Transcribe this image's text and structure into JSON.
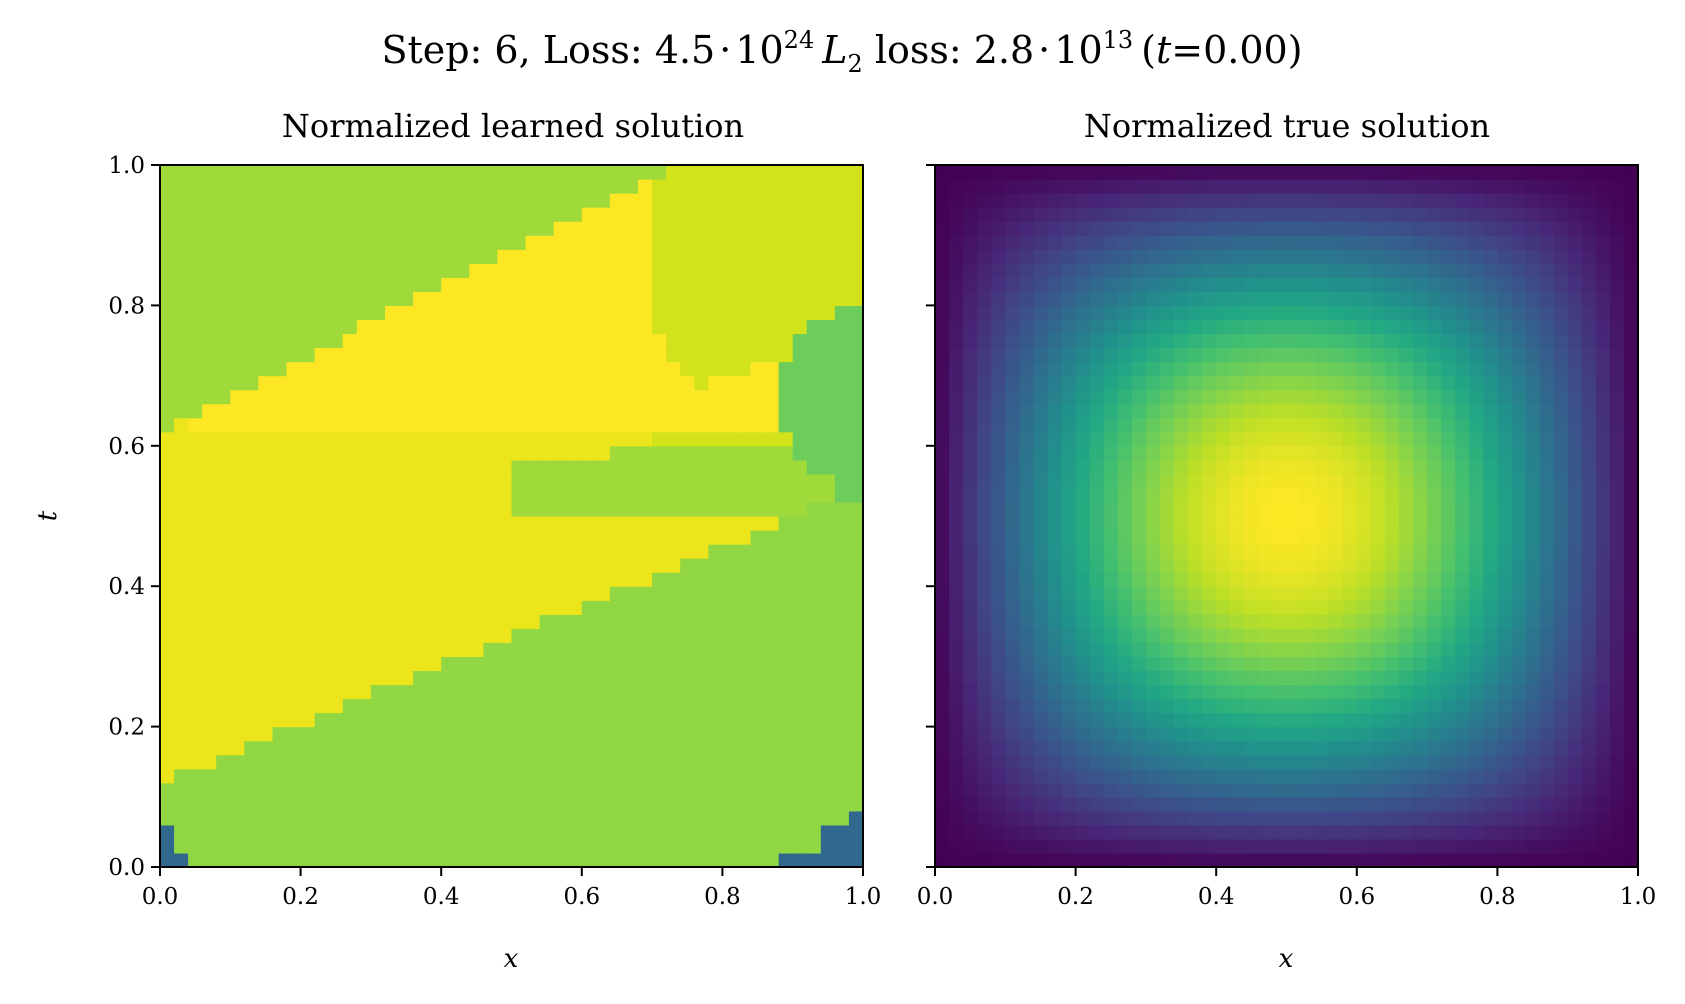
{
  "figure": {
    "suptitle": {
      "step_label": "Step: 6, Loss: ",
      "loss_mantissa": "4.5",
      "loss_exponent": "24",
      "l2_symbol": "L",
      "l2_subscript": "2",
      "l2_label": " loss: ",
      "l2_mantissa": "2.8",
      "l2_exponent": "13",
      "time_open": "(",
      "time_var": "t",
      "time_value": "=0.00)",
      "dot": "·",
      "ten": "10"
    }
  },
  "chart_data": [
    {
      "type": "heatmap",
      "title": "Normalized learned solution",
      "xlabel": "x",
      "ylabel": "t",
      "xlim": [
        0.0,
        1.0
      ],
      "ylim": [
        0.0,
        1.0
      ],
      "xticks": [
        "0.0",
        "0.2",
        "0.4",
        "0.6",
        "0.8",
        "1.0"
      ],
      "yticks": [
        "0.0",
        "0.2",
        "0.4",
        "0.6",
        "0.8",
        "1.0"
      ],
      "colormap": "viridis",
      "grid_resolution": 50,
      "regions": [
        {
          "name": "yellow-band",
          "color": "#fde725"
        },
        {
          "name": "yellow-left",
          "color": "#ece51b"
        },
        {
          "name": "yellow-green-top",
          "color": "#d2e21b"
        },
        {
          "name": "light-green-top-left",
          "color": "#9fda3a"
        },
        {
          "name": "green-lower",
          "color": "#90d743"
        },
        {
          "name": "green-right",
          "color": "#6ccd5a"
        },
        {
          "name": "blue-corners",
          "color": "#31688e"
        }
      ]
    },
    {
      "type": "heatmap",
      "title": "Normalized true solution",
      "xlabel": "x",
      "ylabel": "",
      "xlim": [
        0.0,
        1.0
      ],
      "ylim": [
        0.0,
        1.0
      ],
      "xticks": [
        "0.0",
        "0.2",
        "0.4",
        "0.6",
        "0.8",
        "1.0"
      ],
      "yticks": [],
      "colormap": "viridis",
      "grid_resolution": 50,
      "function": "sin(pi*x)*sin(pi*t)",
      "value_range": [
        0.0,
        1.0
      ]
    }
  ]
}
